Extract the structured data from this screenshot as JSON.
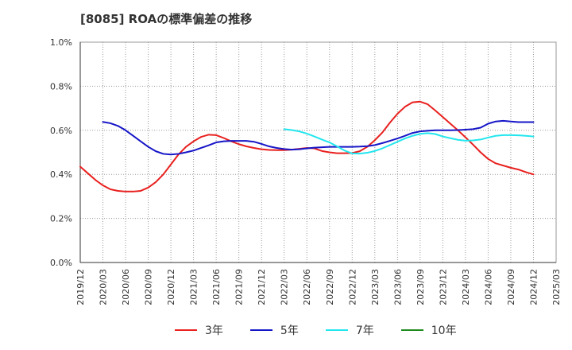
{
  "chart_data": {
    "type": "line",
    "title": "[8085]  ROAの標準偏差の推移",
    "xlabel": "",
    "ylabel": "",
    "ylim": [
      0,
      1.0
    ],
    "y_ticks": [
      "0.0%",
      "0.2%",
      "0.4%",
      "0.6%",
      "0.8%",
      "1.0%"
    ],
    "x_ticks": [
      "2019/12",
      "2020/03",
      "2020/06",
      "2020/09",
      "2020/12",
      "2021/03",
      "2021/06",
      "2021/09",
      "2021/12",
      "2022/03",
      "2022/06",
      "2022/09",
      "2022/12",
      "2023/03",
      "2023/06",
      "2023/09",
      "2023/12",
      "2024/03",
      "2024/06",
      "2024/09",
      "2024/12",
      "2025/03"
    ],
    "grid": true,
    "legend_position": "bottom",
    "series": [
      {
        "name": "3年",
        "color": "#e8201e",
        "x": [
          "2019/12",
          "2020/01",
          "2020/02",
          "2020/03",
          "2020/04",
          "2020/05",
          "2020/06",
          "2020/07",
          "2020/08",
          "2020/09",
          "2020/10",
          "2020/11",
          "2020/12",
          "2021/01",
          "2021/02",
          "2021/03",
          "2021/04",
          "2021/05",
          "2021/06",
          "2021/07",
          "2021/08",
          "2021/09",
          "2021/10",
          "2021/11",
          "2021/12",
          "2022/01",
          "2022/02",
          "2022/03",
          "2022/04",
          "2022/05",
          "2022/06",
          "2022/07",
          "2022/08",
          "2022/09",
          "2022/10",
          "2022/11",
          "2022/12",
          "2023/01",
          "2023/02",
          "2023/03",
          "2023/04",
          "2023/05",
          "2023/06",
          "2023/07",
          "2023/08",
          "2023/09",
          "2023/10",
          "2023/11",
          "2023/12",
          "2024/01",
          "2024/02",
          "2024/03",
          "2024/04",
          "2024/05",
          "2024/06",
          "2024/07",
          "2024/08",
          "2024/09",
          "2024/10",
          "2024/11",
          "2024/12"
        ],
        "values": [
          0.435,
          0.405,
          0.375,
          0.35,
          0.332,
          0.325,
          0.322,
          0.322,
          0.325,
          0.34,
          0.365,
          0.4,
          0.445,
          0.49,
          0.525,
          0.55,
          0.57,
          0.58,
          0.578,
          0.565,
          0.55,
          0.537,
          0.527,
          0.52,
          0.514,
          0.511,
          0.51,
          0.51,
          0.512,
          0.516,
          0.52,
          0.518,
          0.506,
          0.5,
          0.496,
          0.496,
          0.497,
          0.505,
          0.525,
          0.555,
          0.59,
          0.635,
          0.675,
          0.707,
          0.727,
          0.73,
          0.718,
          0.69,
          0.66,
          0.63,
          0.6,
          0.568,
          0.535,
          0.5,
          0.47,
          0.45,
          0.44,
          0.43,
          0.422,
          0.41,
          0.4
        ]
      },
      {
        "name": "5年",
        "color": "#1515c8",
        "x": [
          "2020/03",
          "2020/04",
          "2020/05",
          "2020/06",
          "2020/07",
          "2020/08",
          "2020/09",
          "2020/10",
          "2020/11",
          "2020/12",
          "2021/01",
          "2021/02",
          "2021/03",
          "2021/04",
          "2021/05",
          "2021/06",
          "2021/07",
          "2021/08",
          "2021/09",
          "2021/10",
          "2021/11",
          "2021/12",
          "2022/01",
          "2022/02",
          "2022/03",
          "2022/04",
          "2022/05",
          "2022/06",
          "2022/07",
          "2022/08",
          "2022/09",
          "2022/10",
          "2022/11",
          "2022/12",
          "2023/01",
          "2023/02",
          "2023/03",
          "2023/04",
          "2023/05",
          "2023/06",
          "2023/07",
          "2023/08",
          "2023/09",
          "2023/10",
          "2023/11",
          "2023/12",
          "2024/01",
          "2024/02",
          "2024/03",
          "2024/04",
          "2024/05",
          "2024/06",
          "2024/07",
          "2024/08",
          "2024/09",
          "2024/10",
          "2024/11",
          "2024/12"
        ],
        "values": [
          0.638,
          0.632,
          0.62,
          0.6,
          0.575,
          0.55,
          0.525,
          0.505,
          0.493,
          0.49,
          0.493,
          0.5,
          0.508,
          0.52,
          0.532,
          0.545,
          0.55,
          0.552,
          0.552,
          0.552,
          0.548,
          0.538,
          0.527,
          0.52,
          0.515,
          0.512,
          0.514,
          0.518,
          0.521,
          0.523,
          0.525,
          0.525,
          0.525,
          0.525,
          0.526,
          0.528,
          0.533,
          0.542,
          0.552,
          0.563,
          0.575,
          0.588,
          0.595,
          0.598,
          0.6,
          0.6,
          0.6,
          0.601,
          0.603,
          0.605,
          0.612,
          0.63,
          0.64,
          0.643,
          0.64,
          0.637,
          0.637,
          0.637
        ]
      },
      {
        "name": "7年",
        "color": "#22e6ee",
        "x": [
          "2022/03",
          "2022/04",
          "2022/05",
          "2022/06",
          "2022/07",
          "2022/08",
          "2022/09",
          "2022/10",
          "2022/11",
          "2022/12",
          "2023/01",
          "2023/02",
          "2023/03",
          "2023/04",
          "2023/05",
          "2023/06",
          "2023/07",
          "2023/08",
          "2023/09",
          "2023/10",
          "2023/11",
          "2023/12",
          "2024/01",
          "2024/02",
          "2024/03",
          "2024/04",
          "2024/05",
          "2024/06",
          "2024/07",
          "2024/08",
          "2024/09",
          "2024/10",
          "2024/11",
          "2024/12"
        ],
        "values": [
          0.605,
          0.601,
          0.595,
          0.585,
          0.572,
          0.558,
          0.545,
          0.527,
          0.508,
          0.495,
          0.494,
          0.498,
          0.506,
          0.518,
          0.533,
          0.548,
          0.563,
          0.575,
          0.584,
          0.587,
          0.583,
          0.572,
          0.564,
          0.557,
          0.553,
          0.554,
          0.558,
          0.567,
          0.575,
          0.578,
          0.578,
          0.577,
          0.575,
          0.572
        ]
      },
      {
        "name": "10年",
        "color": "#1c8a1c",
        "x": [],
        "values": []
      }
    ]
  }
}
